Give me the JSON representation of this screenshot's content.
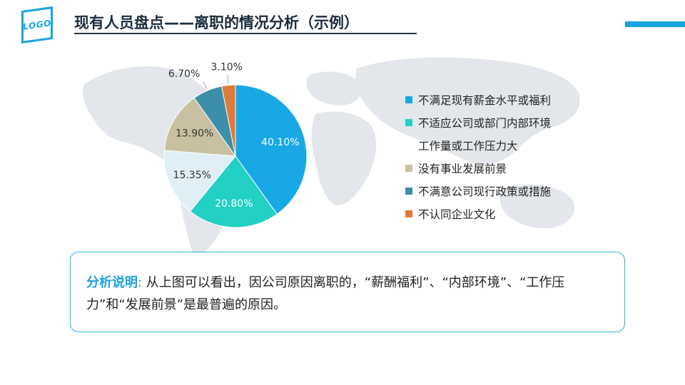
{
  "logo": {
    "text": "LOGO"
  },
  "header": {
    "title": "现有人员盘点——离职的情况分析（示例）"
  },
  "colors": {
    "accent": "#1aa3e0",
    "title": "#1b2d3d",
    "map": "#e3e6ea"
  },
  "chart_data": {
    "type": "pie",
    "start_angle_deg": 0,
    "direction": "clockwise",
    "slices": [
      {
        "label": "不满足现有薪金水平或福利",
        "value": 40.1,
        "display": "40.10%",
        "color": "#18a8e6",
        "label_color": "#ffffff"
      },
      {
        "label": "不适应公司或部门内部环境",
        "value": 20.8,
        "display": "20.80%",
        "color": "#22d0c4",
        "label_color": "#ffffff"
      },
      {
        "label": "工作量或工作压力大",
        "value": 15.35,
        "display": "15.35%",
        "color": "#e0eff6",
        "label_color": "#333333"
      },
      {
        "label": "没有事业发展前景",
        "value": 13.9,
        "display": "13.90%",
        "color": "#c9c0a1",
        "label_color": "#333333"
      },
      {
        "label": "不满意公司现行政策或措施",
        "value": 6.7,
        "display": "6.70%",
        "color": "#3c8fa8",
        "label_color": "#333333"
      },
      {
        "label": "不认同企业文化",
        "value": 3.1,
        "display": "3.10%",
        "color": "#e07a3a",
        "label_color": "#333333"
      }
    ]
  },
  "legend": {
    "items": [
      {
        "label": "不满足现有薪金水平或福利",
        "color": "#18a8e6"
      },
      {
        "label": "不适应公司或部门内部环境",
        "color": "#22d0c4"
      },
      {
        "label": "工作量或工作压力大",
        "color": "#ffffff"
      },
      {
        "label": "没有事业发展前景",
        "color": "#c9c0a1"
      },
      {
        "label": "不满意公司现行政策或措施",
        "color": "#3c8fa8"
      },
      {
        "label": "不认同企业文化",
        "color": "#e07a3a"
      }
    ]
  },
  "note": {
    "heading": "分析说明",
    "separator": ":",
    "body": " 从上图可以看出，因公司原因离职的，“薪酬福利”、“内部环境”、“工作压力”和“发展前景”是最普遍的原因。"
  }
}
